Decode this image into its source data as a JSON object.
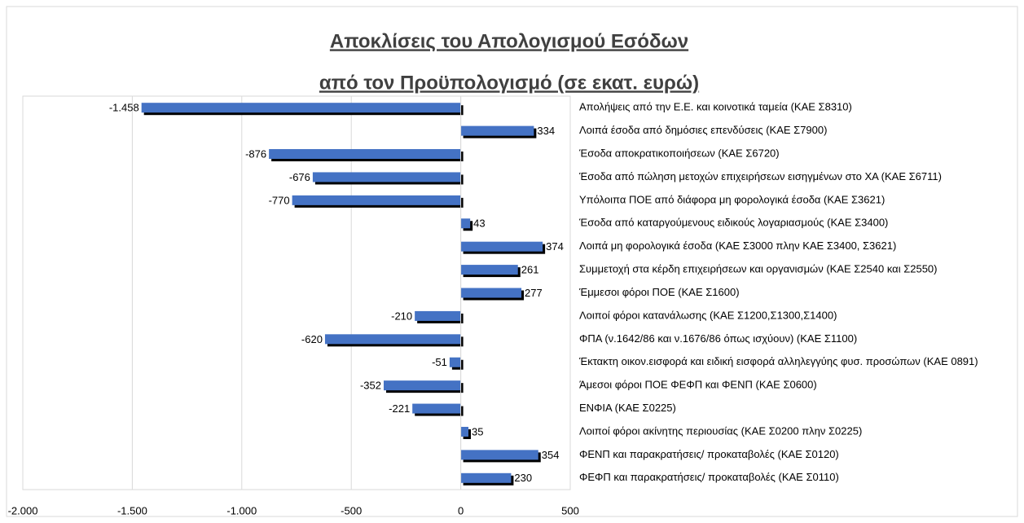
{
  "chart_data": {
    "type": "bar",
    "orientation": "horizontal",
    "title": [
      "Αποκλίσεις του Απολογισμού Εσόδων ",
      "από τον Προϋπολογισμό (σε εκατ. ευρώ)"
    ],
    "categories": [
      "Απολήψεις από την Ε.Ε. και  κοινοτικά ταμεία (ΚΑΕ Σ8310)",
      "Λοιπά έσοδα από δημόσιες επενδύσεις (ΚΑΕ Σ7900)",
      "Έσοδα αποκρατικοποιήσεων (ΚΑΕ Σ6720)",
      "Έσοδα από πώληση μετοχών επιχειρήσεων εισηγμένων στο ΧΑ (ΚΑΕ Σ6711)",
      "Υπόλοιπα ΠΟΕ από διάφορα μη φορολογικά έσοδα (ΚΑΕ Σ3621)",
      "Έσοδα από καταργούμενους ειδικούς λογαριασμούς (ΚΑΕ Σ3400)",
      "Λοιπά μη φορολογικά έσοδα (ΚΑΕ Σ3000 πλην ΚΑΕ Σ3400, Σ3621)",
      "Συμμετοχή στα κέρδη επιχειρήσεων και οργανισμών (ΚΑΕ Σ2540 και Σ2550)",
      "Έμμεσοι φόροι ΠΟΕ (ΚΑΕ Σ1600)",
      "Λοιποί φόροι κατανάλωσης (ΚΑΕ Σ1200,Σ1300,Σ1400)",
      "ΦΠΑ (ν.1642/86 και ν.1676/86 όπως ισχύουν) (ΚΑΕ Σ1100)",
      "Έκτακτη οικον.εισφορά και ειδική εισφορά αλληλεγγύης φυσ. προσώπων (ΚΑΕ 0891)",
      "Άμεσοι φόροι ΠΟΕ ΦΕΦΠ και ΦΕΝΠ (ΚΑΕ Σ0600)",
      "ΕΝΦΙΑ (ΚΑΕ Σ0225)",
      "Λοιποί φόροι ακίνητης περιουσίας (ΚΑΕ Σ0200 πλην Σ0225)",
      "ΦΕΝΠ και παρακρατήσεις/ προκαταβολές (ΚΑΕ Σ0120)",
      "ΦΕΦΠ και παρακρατήσεις/ προκαταβολές (ΚΑΕ Σ0110)"
    ],
    "values": [
      -1458,
      334,
      -876,
      -676,
      -770,
      43,
      374,
      261,
      277,
      -210,
      -620,
      -51,
      -352,
      -221,
      35,
      354,
      230
    ],
    "value_labels": [
      "-1.458",
      "334",
      "-876",
      "-676",
      "-770",
      "43",
      "374",
      "261",
      "277",
      "-210",
      "-620",
      "-51",
      "-352",
      "-221",
      "35",
      "354",
      "230"
    ],
    "color": "#4472c4",
    "xlim": [
      -2000,
      500
    ],
    "xticks": [
      {
        "value": -2000,
        "label": "-2.000"
      },
      {
        "value": -1500,
        "label": "-1.500"
      },
      {
        "value": -1000,
        "label": "-1.000"
      },
      -500,
      0,
      500
    ],
    "grid": true
  }
}
